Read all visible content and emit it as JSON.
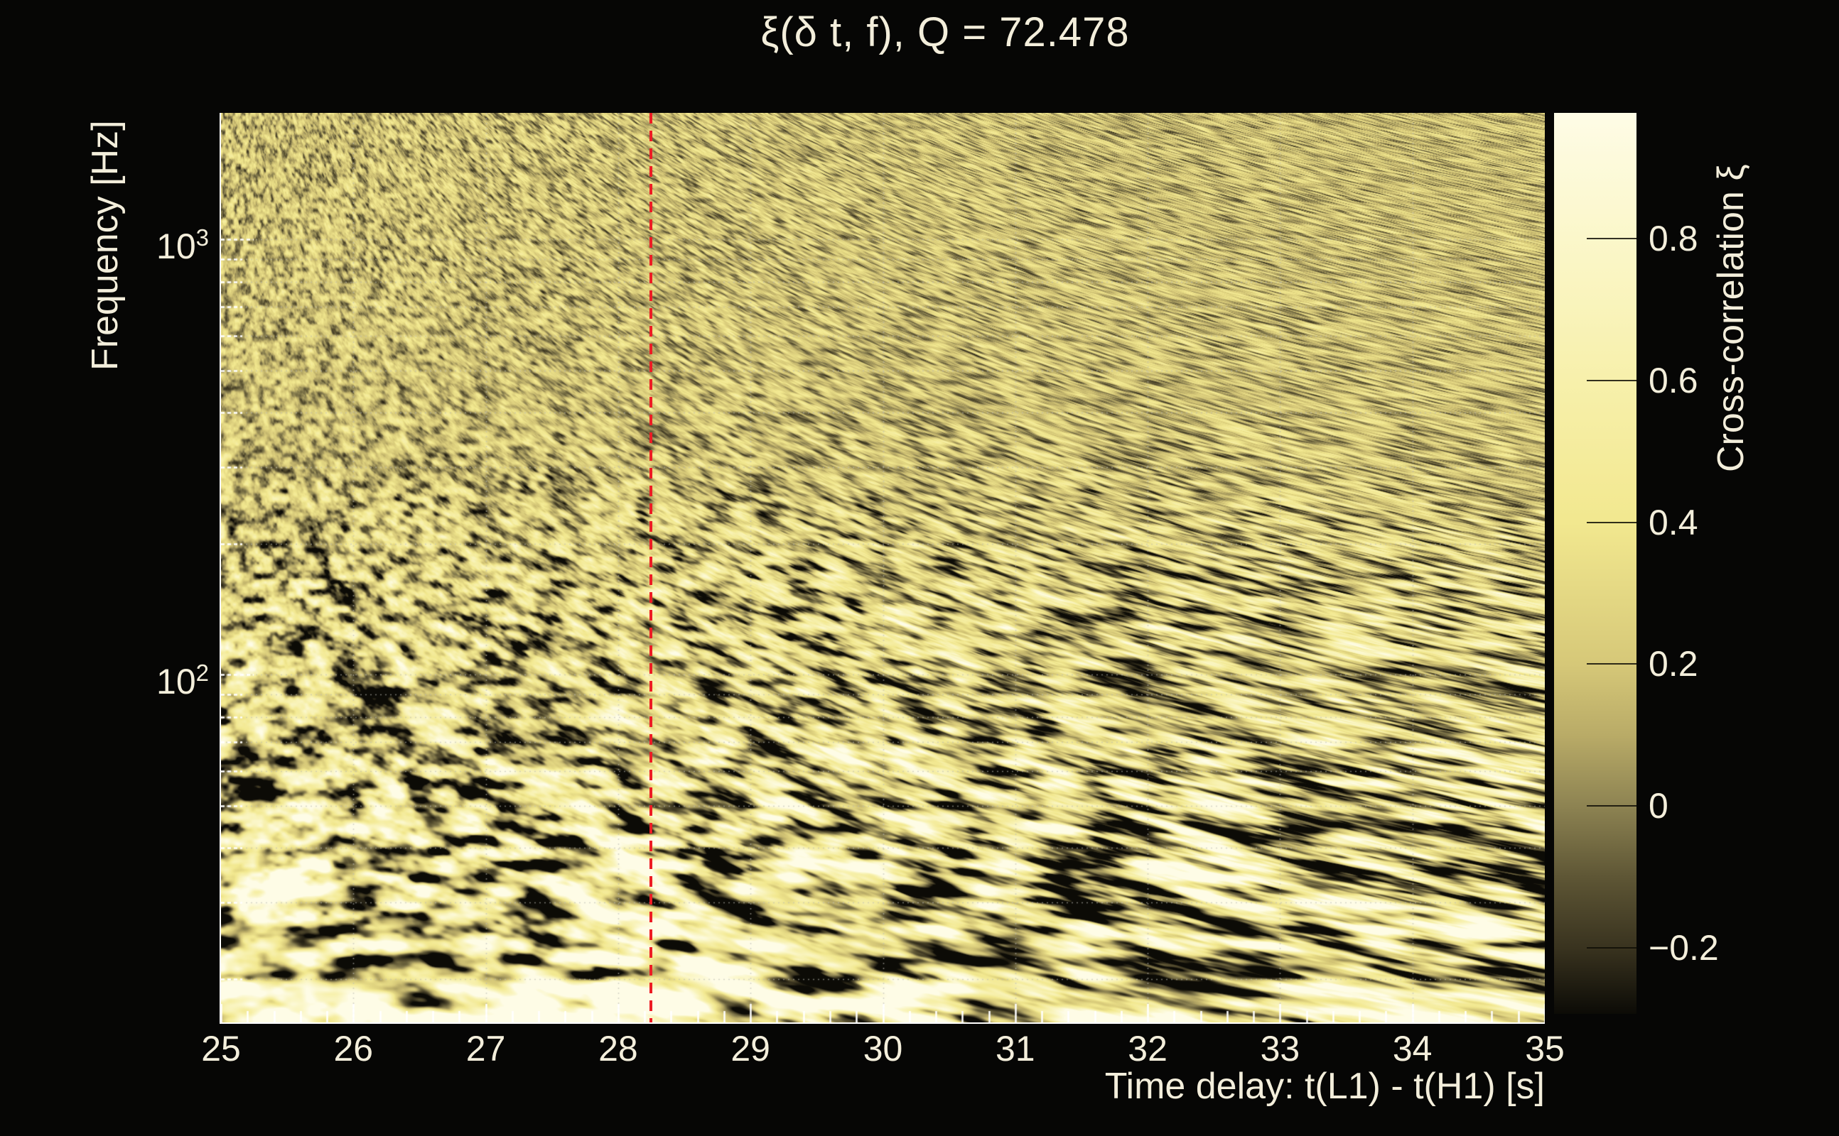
{
  "page": {
    "background": "#060605",
    "text_color": "#f3eedb"
  },
  "chart_data": {
    "type": "heatmap",
    "title": "ξ(δ t, f), Q = 72.478",
    "x_axis": {
      "label": "Time delay: t(L1) - t(H1) [s]",
      "min": 25,
      "max": 35,
      "major_tick_step": 1,
      "minor_tick_step": 0.2,
      "tick_labels": [
        "25",
        "26",
        "27",
        "28",
        "29",
        "30",
        "31",
        "32",
        "33",
        "34",
        "35"
      ]
    },
    "y_axis": {
      "label": "Frequency [Hz]",
      "scale": "log",
      "min_hz": 15.9,
      "max_hz": 1952,
      "decade_tick_labels": [
        {
          "base": "10",
          "exp": "3",
          "hz": 1000
        },
        {
          "base": "10",
          "exp": "2",
          "hz": 100
        }
      ]
    },
    "colorbar": {
      "label": "Cross-correlation ξ",
      "min": -0.293,
      "max": 0.977,
      "ticks": [
        {
          "value": 0.8,
          "label": "0.8"
        },
        {
          "value": 0.6,
          "label": "0.6"
        },
        {
          "value": 0.4,
          "label": "0.4"
        },
        {
          "value": 0.2,
          "label": "0.2"
        },
        {
          "value": 0,
          "label": "0"
        },
        {
          "value": -0.2,
          "label": "−0.2"
        }
      ],
      "gradient_stops": [
        {
          "value": 0.977,
          "color": "#fefce6"
        },
        {
          "value": 0.8,
          "color": "#fbf7ca"
        },
        {
          "value": 0.6,
          "color": "#f7f0ab"
        },
        {
          "value": 0.4,
          "color": "#f2e88f"
        },
        {
          "value": 0.2,
          "color": "#d6c878"
        },
        {
          "value": 0.1,
          "color": "#b9ab67"
        },
        {
          "value": 0,
          "color": "#8d8352"
        },
        {
          "value": -0.1,
          "color": "#5e5635"
        },
        {
          "value": -0.2,
          "color": "#39331f"
        },
        {
          "value": -0.293,
          "color": "#0c0b06"
        }
      ]
    },
    "marker_line": {
      "t": 28.25,
      "color": "#ed1c24",
      "style": "dashed"
    },
    "grid": {
      "color": "rgba(188,188,180,0.6)",
      "style": "dotted"
    },
    "texture": {
      "seed": 20250514,
      "hotspots": [
        {
          "t": 28.35,
          "f_hz": 17.5,
          "amp": 0.5,
          "sigma_t": 0.45,
          "sigma_logf": 0.07
        },
        {
          "t": 25.15,
          "f_hz": 18,
          "amp": 0.45,
          "sigma_t": 0.4,
          "sigma_logf": 0.08
        },
        {
          "t": 25.45,
          "f_hz": 35,
          "amp": 0.3,
          "sigma_t": 0.35,
          "sigma_logf": 0.06
        },
        {
          "t": 34.75,
          "f_hz": 20,
          "amp": 0.3,
          "sigma_t": 0.5,
          "sigma_logf": 0.08
        }
      ]
    }
  }
}
